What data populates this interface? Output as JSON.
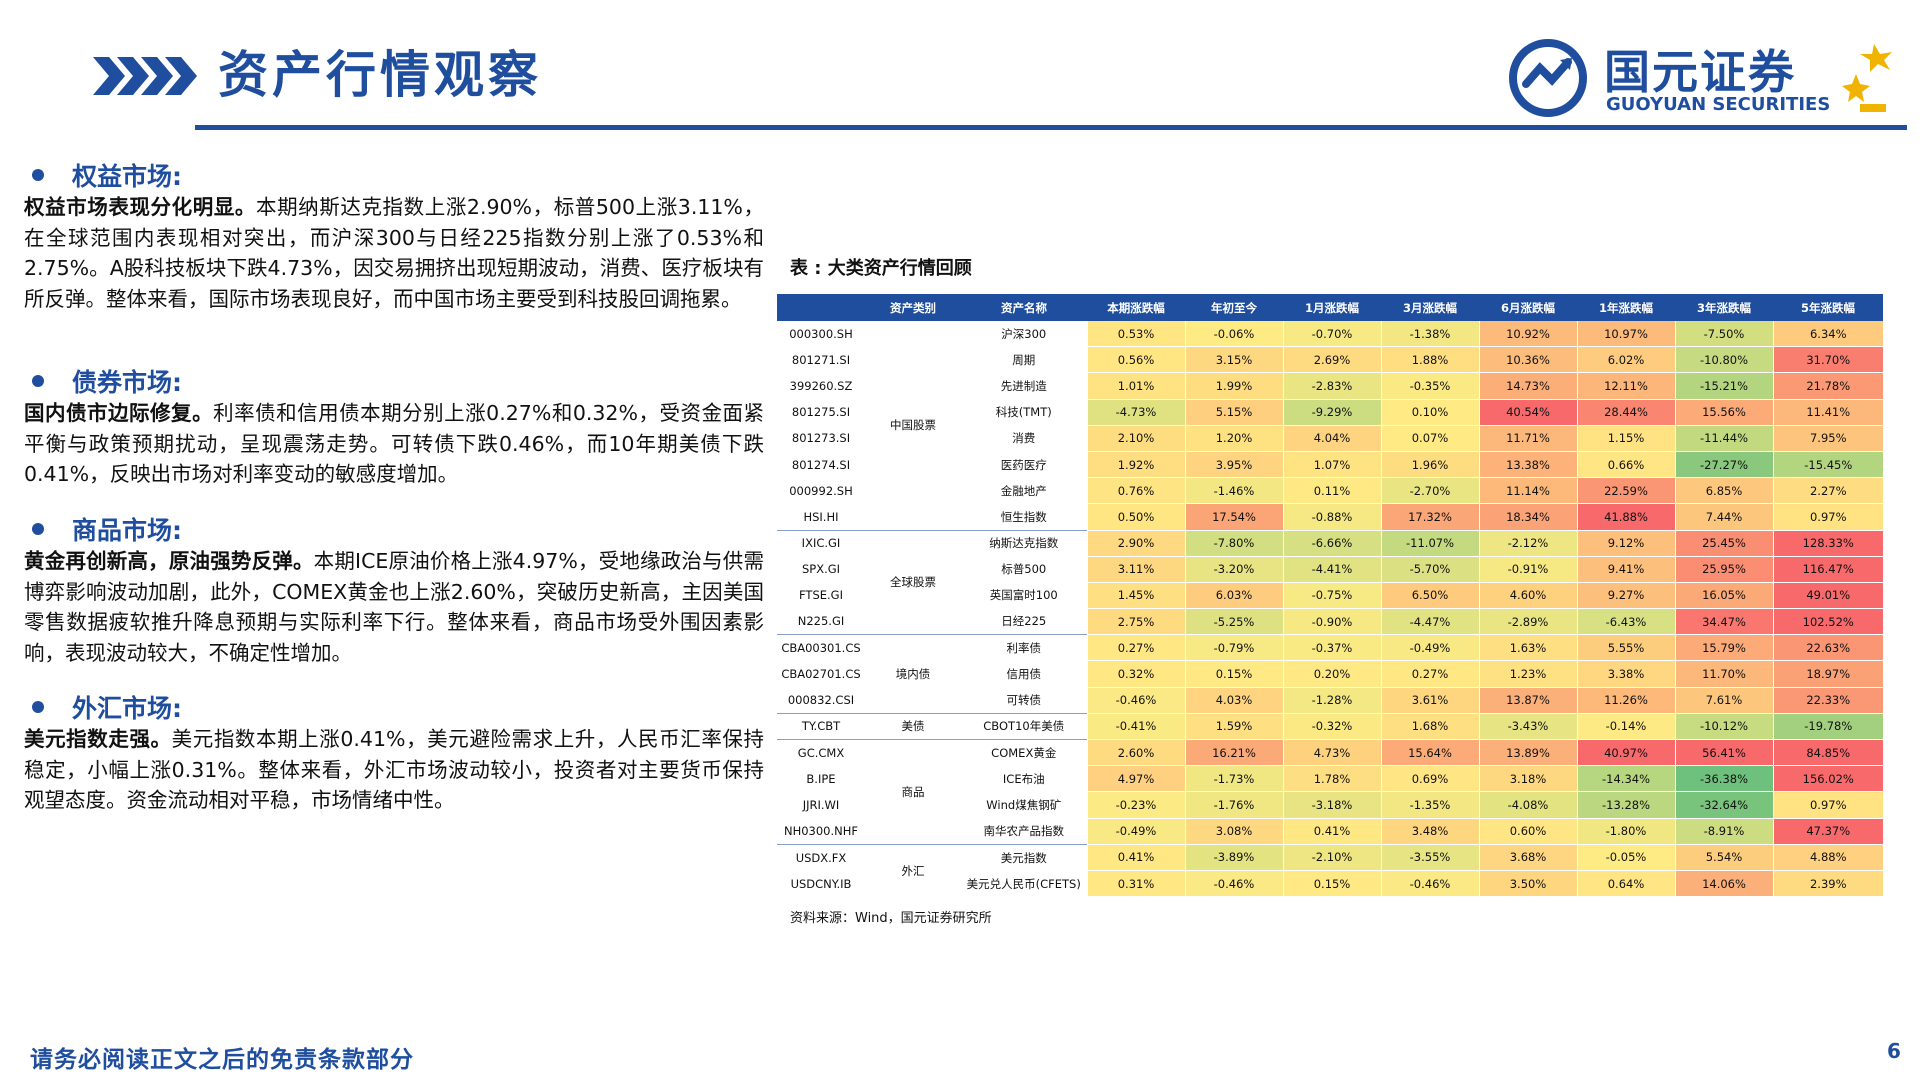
{
  "header": {
    "title": "资产行情观察",
    "logo": {
      "name_cn": "国元证券",
      "name_en": "GUOYUAN SECURITIES"
    }
  },
  "sections": [
    {
      "title": "权益市场:",
      "lead": "权益市场表现分化明显。",
      "body": "本期纳斯达克指数上涨2.90%，标普500上涨3.11%，在全球范围内表现相对突出，而沪深300与日经225指数分别上涨了0.53%和2.75%。A股科技板块下跌4.73%，因交易拥挤出现短期波动，消费、医疗板块有所反弹。整体来看，国际市场表现良好，而中国市场主要受到科技股回调拖累。"
    },
    {
      "title": "债券市场:",
      "lead": "国内债市边际修复。",
      "body": "利率债和信用债本期分别上涨0.27%和0.32%，受资金面紧平衡与政策预期扰动，呈现震荡走势。可转债下跌0.46%，而10年期美债下跌0.41%，反映出市场对利率变动的敏感度增加。"
    },
    {
      "title": "商品市场:",
      "lead": "黄金再创新高，原油强势反弹。",
      "body": "本期ICE原油价格上涨4.97%，受地缘政治与供需博弈影响波动加剧，此外，COMEX黄金也上涨2.60%，突破历史新高，主因美国零售数据疲软推升降息预期与实际利率下行。整体来看，商品市场受外围因素影响，表现波动较大，不确定性增加。"
    },
    {
      "title": "外汇市场:",
      "lead": "美元指数走强。",
      "body": "美元指数本期上涨0.41%，美元避险需求上升，人民币汇率保持稳定，小幅上涨0.31%。整体来看，外汇市场波动较小，投资者对主要货币保持观望态度。资金流动相对平稳，市场情绪中性。"
    }
  ],
  "table": {
    "caption": "表 : 大类资产行情回顾",
    "headers": [
      "",
      "资产类别",
      "资产名称",
      "本期涨跌幅",
      "年初至今",
      "1月涨跌幅",
      "3月涨跌幅",
      "6月涨跌幅",
      "1年涨跌幅",
      "3年涨跌幅",
      "5年涨跌幅"
    ],
    "groups": [
      {
        "category": "中国股票",
        "rows": [
          {
            "code": "000300.SH",
            "name": "沪深300",
            "values": [
              "0.53%",
              "-0.06%",
              "-0.70%",
              "-1.38%",
              "10.92%",
              "10.97%",
              "-7.50%",
              "6.34%"
            ]
          },
          {
            "code": "801271.SI",
            "name": "周期",
            "values": [
              "0.56%",
              "3.15%",
              "2.69%",
              "1.88%",
              "10.36%",
              "6.02%",
              "-10.80%",
              "31.70%"
            ]
          },
          {
            "code": "399260.SZ",
            "name": "先进制造",
            "values": [
              "1.01%",
              "1.99%",
              "-2.83%",
              "-0.35%",
              "14.73%",
              "12.11%",
              "-15.21%",
              "21.78%"
            ]
          },
          {
            "code": "801275.SI",
            "name": "科技(TMT)",
            "values": [
              "-4.73%",
              "5.15%",
              "-9.29%",
              "0.10%",
              "40.54%",
              "28.44%",
              "15.56%",
              "11.41%"
            ]
          },
          {
            "code": "801273.SI",
            "name": "消费",
            "values": [
              "2.10%",
              "1.20%",
              "4.04%",
              "0.07%",
              "11.71%",
              "1.15%",
              "-11.44%",
              "7.95%"
            ]
          },
          {
            "code": "801274.SI",
            "name": "医药医疗",
            "values": [
              "1.92%",
              "3.95%",
              "1.07%",
              "1.96%",
              "13.38%",
              "0.66%",
              "-27.27%",
              "-15.45%"
            ]
          },
          {
            "code": "000992.SH",
            "name": "金融地产",
            "values": [
              "0.76%",
              "-1.46%",
              "0.11%",
              "-2.70%",
              "11.14%",
              "22.59%",
              "6.85%",
              "2.27%"
            ]
          },
          {
            "code": "HSI.HI",
            "name": "恒生指数",
            "values": [
              "0.50%",
              "17.54%",
              "-0.88%",
              "17.32%",
              "18.34%",
              "41.88%",
              "7.44%",
              "0.97%"
            ]
          }
        ]
      },
      {
        "category": "全球股票",
        "rows": [
          {
            "code": "IXIC.GI",
            "name": "纳斯达克指数",
            "values": [
              "2.90%",
              "-7.80%",
              "-6.66%",
              "-11.07%",
              "-2.12%",
              "9.12%",
              "25.45%",
              "128.33%"
            ]
          },
          {
            "code": "SPX.GI",
            "name": "标普500",
            "values": [
              "3.11%",
              "-3.20%",
              "-4.41%",
              "-5.70%",
              "-0.91%",
              "9.41%",
              "25.95%",
              "116.47%"
            ]
          },
          {
            "code": "FTSE.GI",
            "name": "英国富时100",
            "values": [
              "1.45%",
              "6.03%",
              "-0.75%",
              "6.50%",
              "4.60%",
              "9.27%",
              "16.05%",
              "49.01%"
            ]
          },
          {
            "code": "N225.GI",
            "name": "日经225",
            "values": [
              "2.75%",
              "-5.25%",
              "-0.90%",
              "-4.47%",
              "-2.89%",
              "-6.43%",
              "34.47%",
              "102.52%"
            ]
          }
        ]
      },
      {
        "category": "境内债",
        "rows": [
          {
            "code": "CBA00301.CS",
            "name": "利率债",
            "values": [
              "0.27%",
              "-0.79%",
              "-0.37%",
              "-0.49%",
              "1.63%",
              "5.55%",
              "15.79%",
              "22.63%"
            ]
          },
          {
            "code": "CBA02701.CS",
            "name": "信用债",
            "values": [
              "0.32%",
              "0.15%",
              "0.20%",
              "0.27%",
              "1.23%",
              "3.38%",
              "11.70%",
              "18.97%"
            ]
          },
          {
            "code": "000832.CSI",
            "name": "可转债",
            "values": [
              "-0.46%",
              "4.03%",
              "-1.28%",
              "3.61%",
              "13.87%",
              "11.26%",
              "7.61%",
              "22.33%"
            ]
          }
        ]
      },
      {
        "category": "美债",
        "rows": [
          {
            "code": "TY.CBT",
            "name": "CBOT10年美债",
            "values": [
              "-0.41%",
              "1.59%",
              "-0.32%",
              "1.68%",
              "-3.43%",
              "-0.14%",
              "-10.12%",
              "-19.78%"
            ]
          }
        ]
      },
      {
        "category": "商品",
        "rows": [
          {
            "code": "GC.CMX",
            "name": "COMEX黄金",
            "values": [
              "2.60%",
              "16.21%",
              "4.73%",
              "15.64%",
              "13.89%",
              "40.97%",
              "56.41%",
              "84.85%"
            ]
          },
          {
            "code": "B.IPE",
            "name": "ICE布油",
            "values": [
              "4.97%",
              "-1.73%",
              "1.78%",
              "0.69%",
              "3.18%",
              "-14.34%",
              "-36.38%",
              "156.02%"
            ]
          },
          {
            "code": "JJRI.WI",
            "name": "Wind煤焦钢矿",
            "values": [
              "-0.23%",
              "-1.76%",
              "-3.18%",
              "-1.35%",
              "-4.08%",
              "-13.28%",
              "-32.64%",
              "0.97%"
            ]
          },
          {
            "code": "NH0300.NHF",
            "name": "南华农产品指数",
            "values": [
              "-0.49%",
              "3.08%",
              "0.41%",
              "3.48%",
              "0.60%",
              "-1.80%",
              "-8.91%",
              "47.37%"
            ]
          }
        ]
      },
      {
        "category": "外汇",
        "rows": [
          {
            "code": "USDX.FX",
            "name": "美元指数",
            "values": [
              "0.41%",
              "-3.89%",
              "-2.10%",
              "-3.55%",
              "3.68%",
              "-0.05%",
              "5.54%",
              "4.88%"
            ]
          },
          {
            "code": "USDCNY.IB",
            "name": "美元兑人民币(CFETS)",
            "values": [
              "0.31%",
              "-0.46%",
              "0.15%",
              "-0.46%",
              "3.50%",
              "0.64%",
              "14.06%",
              "2.39%"
            ]
          }
        ]
      }
    ],
    "source": "资料来源：Wind，国元证券研究所"
  },
  "footer": {
    "disclaimer": "请务必阅读正文之后的免责条款部分",
    "page": "6"
  },
  "colors": {
    "brand_blue": "#1f4e9e",
    "gold": "#f0b400",
    "heat_red": "#f8696b",
    "heat_yellow": "#ffeb84",
    "heat_green": "#63be7b"
  }
}
